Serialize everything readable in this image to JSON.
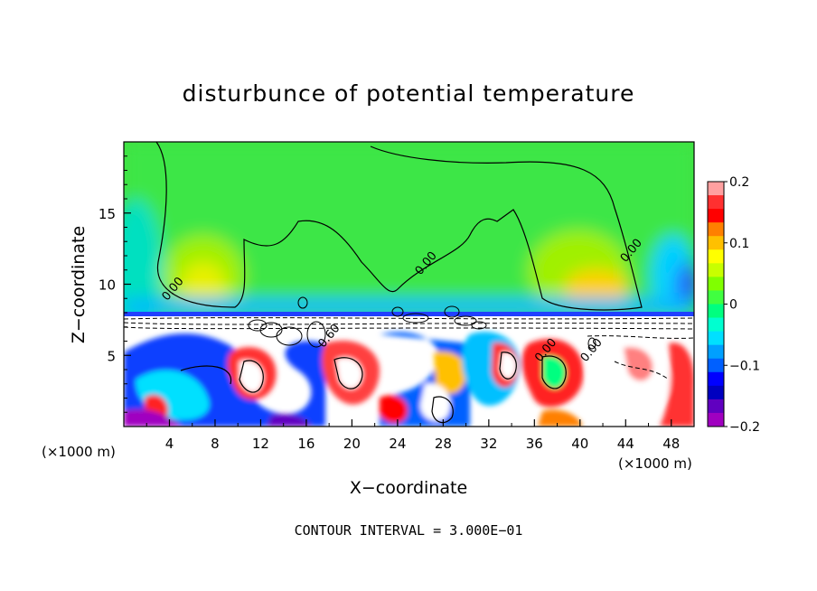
{
  "chart_data": {
    "type": "heatmap",
    "title": "disturbunce of potential temperature",
    "xlabel": "X−coordinate",
    "ylabel": "Z−coordinate",
    "x_unit_left": "(×1000 m)",
    "x_unit_right": "(×1000 m)",
    "x_ticks": [
      "4",
      "8",
      "12",
      "16",
      "20",
      "24",
      "28",
      "32",
      "36",
      "40",
      "44",
      "48"
    ],
    "y_ticks": [
      "5",
      "10",
      "15"
    ],
    "xlim": [
      0,
      50
    ],
    "ylim": [
      0,
      20
    ],
    "colorbar": {
      "range": [
        -0.2,
        0.2
      ],
      "tick_labels": [
        "0.2",
        "0.1",
        "0",
        "−0.1",
        "−0.2"
      ],
      "tick_values": [
        0.2,
        0.1,
        0,
        -0.1,
        -0.2
      ],
      "colors": [
        "#ffa0a0",
        "#ff3030",
        "#ff0000",
        "#ff8000",
        "#ffc000",
        "#ffff00",
        "#c8ff00",
        "#80ff00",
        "#40ff40",
        "#00ff80",
        "#00ffd0",
        "#00e0ff",
        "#00a0ff",
        "#0060ff",
        "#0000ff",
        "#0000c0",
        "#6000c0",
        "#a000c0"
      ]
    },
    "contour_labels": [
      {
        "text": "0.00",
        "x": 3.8,
        "y": 8.8
      },
      {
        "text": "0.00",
        "x": 26.0,
        "y": 10.6
      },
      {
        "text": "0.00",
        "x": 44.0,
        "y": 11.5
      },
      {
        "text": "0.60",
        "x": 17.5,
        "y": 5.5
      },
      {
        "text": "0.00",
        "x": 36.5,
        "y": 4.5
      },
      {
        "text": "0.00",
        "x": 40.5,
        "y": 4.5
      }
    ],
    "footer": "CONTOUR INTERVAL = 3.000E−01"
  }
}
